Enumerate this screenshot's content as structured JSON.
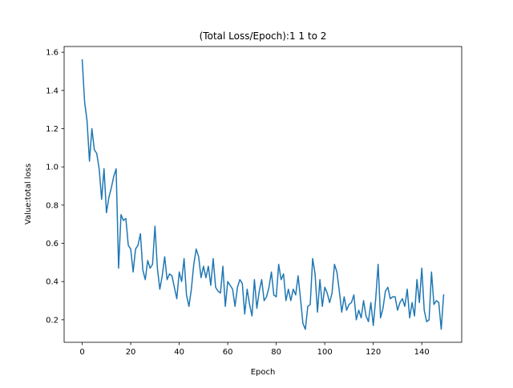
{
  "chart_data": {
    "type": "line",
    "title": "(Total Loss/Epoch):1 1 to 2",
    "xlabel": "Epoch",
    "ylabel": "Value:total loss",
    "xlim": [
      -7.45,
      156.45
    ],
    "ylim": [
      0.082,
      1.63
    ],
    "xticks": [
      0,
      20,
      40,
      60,
      80,
      100,
      120,
      140
    ],
    "xtick_labels": [
      "0",
      "20",
      "40",
      "60",
      "80",
      "100",
      "120",
      "140"
    ],
    "yticks": [
      0.2,
      0.4,
      0.6,
      0.8,
      1.0,
      1.2,
      1.4,
      1.6
    ],
    "ytick_labels": [
      "0.2",
      "0.4",
      "0.6",
      "0.8",
      "1.0",
      "1.2",
      "1.4",
      "1.6"
    ],
    "grid": false,
    "series": [
      {
        "color": "#1f77b4",
        "x_start": 0,
        "x_step": 1,
        "values": [
          1.56,
          1.34,
          1.24,
          1.03,
          1.2,
          1.09,
          1.07,
          0.99,
          0.83,
          0.99,
          0.76,
          0.84,
          0.89,
          0.95,
          0.99,
          0.47,
          0.75,
          0.72,
          0.73,
          0.59,
          0.57,
          0.45,
          0.57,
          0.59,
          0.65,
          0.46,
          0.41,
          0.51,
          0.47,
          0.49,
          0.69,
          0.47,
          0.36,
          0.43,
          0.53,
          0.41,
          0.44,
          0.43,
          0.37,
          0.31,
          0.45,
          0.4,
          0.52,
          0.33,
          0.27,
          0.36,
          0.49,
          0.57,
          0.53,
          0.42,
          0.48,
          0.42,
          0.48,
          0.38,
          0.52,
          0.37,
          0.35,
          0.34,
          0.48,
          0.27,
          0.4,
          0.38,
          0.36,
          0.27,
          0.37,
          0.41,
          0.39,
          0.23,
          0.36,
          0.28,
          0.22,
          0.41,
          0.26,
          0.35,
          0.41,
          0.3,
          0.32,
          0.37,
          0.45,
          0.33,
          0.32,
          0.49,
          0.41,
          0.44,
          0.3,
          0.36,
          0.3,
          0.36,
          0.33,
          0.43,
          0.31,
          0.18,
          0.15,
          0.27,
          0.28,
          0.52,
          0.44,
          0.24,
          0.41,
          0.27,
          0.37,
          0.34,
          0.29,
          0.34,
          0.49,
          0.45,
          0.35,
          0.24,
          0.32,
          0.25,
          0.28,
          0.29,
          0.33,
          0.2,
          0.25,
          0.21,
          0.3,
          0.22,
          0.19,
          0.29,
          0.17,
          0.31,
          0.49,
          0.21,
          0.26,
          0.35,
          0.37,
          0.31,
          0.32,
          0.32,
          0.25,
          0.29,
          0.31,
          0.27,
          0.36,
          0.21,
          0.29,
          0.22,
          0.41,
          0.29,
          0.47,
          0.25,
          0.19,
          0.2,
          0.45,
          0.28,
          0.3,
          0.29,
          0.15,
          0.33
        ]
      }
    ]
  }
}
